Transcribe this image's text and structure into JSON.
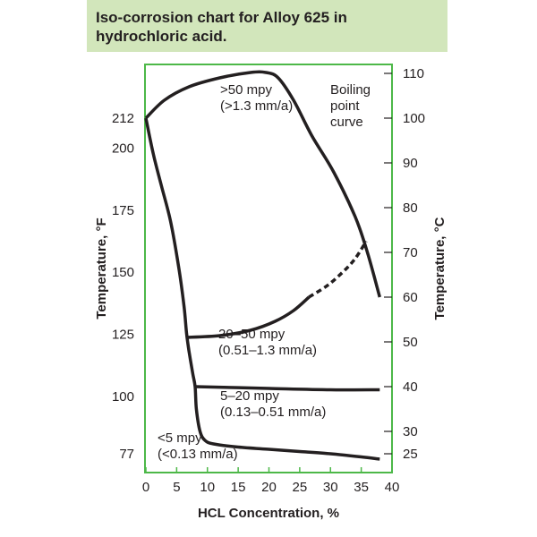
{
  "chart_data": {
    "type": "line",
    "title": "Iso-corrosion chart for Alloy 625 in hydrochloric acid.",
    "xlabel": "HCL Concentration, %",
    "ylabel_left": "Temperature, °F",
    "ylabel_right": "Temperature, °C",
    "xlim": [
      0,
      40
    ],
    "ylim_c": [
      20,
      112
    ],
    "x_ticks": [
      "0",
      "5",
      "10",
      "15",
      "20",
      "25",
      "30",
      "35",
      "40"
    ],
    "x_tick_values": [
      0,
      5,
      10,
      15,
      20,
      25,
      30,
      35,
      40
    ],
    "y_left_ticks": [
      {
        "label": "212",
        "c": 100
      },
      {
        "label": "200",
        "c": 93.3
      },
      {
        "label": "175",
        "c": 79.4
      },
      {
        "label": "150",
        "c": 65.6
      },
      {
        "label": "125",
        "c": 51.7
      },
      {
        "label": "100",
        "c": 37.8
      },
      {
        "label": "77",
        "c": 25
      }
    ],
    "y_right_ticks": [
      {
        "label": "110",
        "c": 110
      },
      {
        "label": "100",
        "c": 100
      },
      {
        "label": "90",
        "c": 90
      },
      {
        "label": "80",
        "c": 80
      },
      {
        "label": "70",
        "c": 70
      },
      {
        "label": "60",
        "c": 60
      },
      {
        "label": "50",
        "c": 50
      },
      {
        "label": "40",
        "c": 40
      },
      {
        "label": "30",
        "c": 30
      },
      {
        "label": "25",
        "c": 25
      }
    ],
    "series": [
      {
        "name": "Boiling point curve",
        "dashed": false,
        "points": [
          [
            0,
            100
          ],
          [
            3,
            104
          ],
          [
            7,
            107
          ],
          [
            12,
            109
          ],
          [
            17,
            110.2
          ],
          [
            19.5,
            110.2
          ],
          [
            21.5,
            109
          ],
          [
            24,
            104
          ],
          [
            27,
            96
          ],
          [
            30.5,
            88
          ],
          [
            34,
            78
          ],
          [
            36,
            70
          ],
          [
            38,
            60
          ]
        ]
      },
      {
        "name": "5 mpy iso-corrosion line",
        "dashed": false,
        "points": [
          [
            0,
            100
          ],
          [
            1.2,
            92
          ],
          [
            2.5,
            85
          ],
          [
            4,
            77
          ],
          [
            5.3,
            67
          ],
          [
            6.2,
            58
          ],
          [
            6.6,
            52
          ],
          [
            7,
            48
          ],
          [
            7.6,
            43
          ],
          [
            8,
            40
          ],
          [
            8.2,
            35
          ],
          [
            8.8,
            30
          ],
          [
            9.6,
            28
          ],
          [
            11,
            27.2
          ],
          [
            15,
            26.5
          ],
          [
            20,
            26
          ],
          [
            25,
            25.5
          ],
          [
            30,
            25
          ],
          [
            35,
            24.3
          ],
          [
            38,
            23.8
          ]
        ]
      },
      {
        "name": "50 mpy iso-corrosion line",
        "dashed": false,
        "points": [
          [
            6.5,
            51
          ],
          [
            12,
            51.4
          ],
          [
            17,
            52.6
          ],
          [
            21,
            54.6
          ],
          [
            24,
            57
          ],
          [
            26.5,
            60
          ]
        ]
      },
      {
        "name": "50 mpy iso-corrosion line (extrapolated)",
        "dashed": true,
        "points": [
          [
            26.5,
            60
          ],
          [
            29.5,
            62.6
          ],
          [
            32,
            65.6
          ],
          [
            34,
            68.6
          ],
          [
            35.8,
            72.5
          ]
        ]
      },
      {
        "name": "20 mpy iso-corrosion line",
        "dashed": false,
        "points": [
          [
            8,
            40
          ],
          [
            20,
            39.6
          ],
          [
            30,
            39.3
          ],
          [
            38,
            39.3
          ]
        ]
      }
    ],
    "annotations": [
      {
        "id": "above50",
        "lines": [
          ">50 mpy",
          "(>1.3 mm/a)"
        ]
      },
      {
        "id": "boiling",
        "lines": [
          "Boiling",
          "point",
          "curve"
        ]
      },
      {
        "id": "range20_50",
        "lines": [
          "20–50 mpy",
          "(0.51–1.3 mm/a)"
        ]
      },
      {
        "id": "range5_20",
        "lines": [
          "5–20 mpy",
          "(0.13–0.51 mm/a)"
        ]
      },
      {
        "id": "below5",
        "lines": [
          "<5 mpy",
          "(<0.13 mm/a)"
        ]
      }
    ],
    "colors": {
      "frame": "#4db848",
      "line": "#231f20",
      "title_band": "#d2e6bb"
    }
  }
}
